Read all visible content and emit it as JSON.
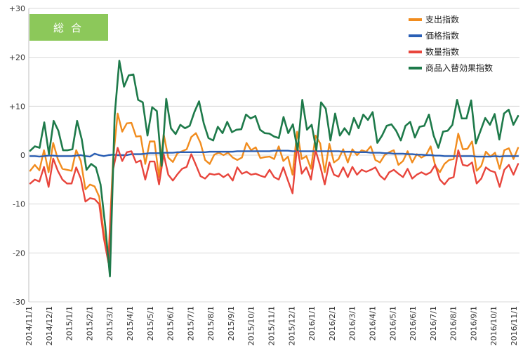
{
  "chart_data": {
    "type": "line",
    "badge": "総合",
    "colors": {
      "支出指数": "#f18c1e",
      "価格指数": "#2a5fb5",
      "数量指数": "#e8453c",
      "商品入替効果指数": "#1e7a4a",
      "badge_bg": "#8cc85a",
      "grid": "#d9d9d9"
    },
    "ylim": [
      -30,
      30
    ],
    "yticks": [
      {
        "v": 30,
        "label": "+30"
      },
      {
        "v": 20,
        "label": "+20"
      },
      {
        "v": 10,
        "label": "+10"
      },
      {
        "v": 0,
        "label": "0"
      },
      {
        "v": -10,
        "label": "-10"
      },
      {
        "v": -20,
        "label": "-20"
      },
      {
        "v": -30,
        "label": "-30"
      }
    ],
    "xticks": [
      "2014/11/1",
      "2014/12/1",
      "2015/1/1",
      "2015/2/1",
      "2015/3/1",
      "2015/4/1",
      "2015/5/1",
      "2015/6/1",
      "2015/7/1",
      "2015/8/1",
      "2015/9/1",
      "2015/10/1",
      "2015/11/1",
      "2015/12/1",
      "2016/1/1",
      "2016/2/1",
      "2016/3/1",
      "2016/4/1",
      "2016/5/1",
      "2016/6/1",
      "2016/7/1",
      "2016/8/1",
      "2016/9/1",
      "2016/10/1",
      "2016/11/1"
    ],
    "grid": true,
    "legend_position": "top-right",
    "series": [
      {
        "name": "支出指数",
        "values": [
          -3.2,
          -2,
          -3.1,
          1,
          -3.5,
          2.5,
          -0.8,
          -2.8,
          -3,
          -3.2,
          1,
          -1.2,
          -7,
          -6,
          -6.4,
          -8.5,
          -16,
          -21,
          -1,
          8.5,
          4.8,
          6.5,
          6.6,
          3.8,
          3.9,
          -1.8,
          2.8,
          2.8,
          -4.5,
          4.3,
          -0.5,
          -1.4,
          0.4,
          0.8,
          1.2,
          3.7,
          4.5,
          2.5,
          -1,
          -1.8,
          0.1,
          0.5,
          0,
          0.5,
          -0.5,
          -1,
          -0.5,
          2.5,
          1,
          1.6,
          -0.6,
          -0.4,
          -0.3,
          -0.8,
          1.8,
          -1.2,
          -0.3,
          -4,
          4.8,
          -0.8,
          -0.2,
          -2.8,
          4,
          2.4,
          -3.5,
          2.3,
          -1.5,
          -0.8,
          1.2,
          -1.5,
          1.2,
          0,
          1,
          0.7,
          1.8,
          -1,
          -1.5,
          0,
          0.6,
          1,
          -2,
          -1.2,
          0.8,
          -1.5,
          0.2,
          -0.5,
          0,
          1.8,
          -2.2,
          -3.5,
          -1.8,
          -1,
          -0.8,
          4.4,
          1.2,
          1.3,
          2.8,
          -3.2,
          -2.2,
          0.7,
          -0.3,
          0.5,
          -2.8,
          1,
          1.4,
          -0.8,
          1.5
        ]
      },
      {
        "name": "価格指数",
        "values": [
          -0.2,
          -0.2,
          -0.3,
          -0.2,
          -0.1,
          -0.1,
          -0.2,
          -0.2,
          -0.2,
          -0.2,
          -0.1,
          0,
          -0.2,
          -0.3,
          0.3,
          0,
          -0.2,
          0,
          0.1,
          0,
          0,
          0,
          0.2,
          0.2,
          0.2,
          0.3,
          0.4,
          0.4,
          0.4,
          0.5,
          0.5,
          0.5,
          0.6,
          0.6,
          0.6,
          0.6,
          0.6,
          0.6,
          0.6,
          0.7,
          0.7,
          0.7,
          0.7,
          0.7,
          0.7,
          0.8,
          0.8,
          0.8,
          0.8,
          0.8,
          0.8,
          0.8,
          0.8,
          0.9,
          0.9,
          0.9,
          0.9,
          0.8,
          0.8,
          0.8,
          0.8,
          0.8,
          0.8,
          0.8,
          0.8,
          0.8,
          0.8,
          0.8,
          0.7,
          0.7,
          0.7,
          0.6,
          0.6,
          0.6,
          0.5,
          0.5,
          0.5,
          0.4,
          0.4,
          0.3,
          0.3,
          0.3,
          0.2,
          0.2,
          0.1,
          0.1,
          0,
          0,
          -0.1,
          -0.1,
          -0.2,
          -0.2,
          -0.2,
          -0.2,
          -0.2,
          -0.2,
          -0.2,
          -0.3,
          -0.3,
          -0.3,
          -0.3,
          -0.2,
          -0.3,
          -0.2,
          -0.2,
          -0.2,
          -0.2
        ]
      },
      {
        "name": "数量指数",
        "values": [
          -5.8,
          -5,
          -5.4,
          -2.4,
          -6.5,
          -0.7,
          -3.2,
          -5,
          -5.8,
          -5.8,
          -2.5,
          -4.8,
          -9.5,
          -8.8,
          -9,
          -10,
          -17,
          -22,
          -3,
          1.5,
          -1.2,
          0.6,
          0.8,
          -1.5,
          -1.1,
          -5,
          -1.3,
          -1.3,
          -6,
          0.2,
          -4,
          -5.2,
          -3.9,
          -2.8,
          -2.4,
          0.2,
          -2,
          -4.3,
          -4.8,
          -3.8,
          -4,
          -3.8,
          -4.5,
          -3.9,
          -5.2,
          -2.5,
          -3.8,
          -3.4,
          -4,
          -3.8,
          -4.2,
          -4.5,
          -3,
          -4.5,
          -5,
          -2.5,
          -5.2,
          -7.8,
          2,
          -3.8,
          -2.5,
          -5,
          1,
          -2.2,
          -6,
          -1.5,
          -4,
          -4.4,
          -2.5,
          -4.5,
          -2.4,
          -4,
          -3,
          -3.4,
          -3,
          -2.5,
          -4.2,
          -5,
          -3.5,
          -3,
          -3.8,
          -4.5,
          -2.8,
          -4.8,
          -4,
          -3.5,
          -4,
          -3.5,
          -2,
          -5,
          -6,
          -4.8,
          -4.5,
          1,
          -2,
          -2.2,
          -1.5,
          -5.8,
          -4.8,
          -2.5,
          -3.2,
          -3.5,
          -6.5,
          -3,
          -2,
          -4,
          -1.8
        ]
      },
      {
        "name": "商品入替効果指数",
        "values": [
          0.9,
          1.8,
          1.5,
          6.7,
          0.2,
          7,
          5,
          1,
          1,
          1.2,
          7,
          3.2,
          -3,
          -1.8,
          -2.5,
          -6,
          -14.5,
          -24.8,
          8,
          19.3,
          14,
          16.3,
          16.5,
          11.3,
          10.8,
          4,
          9.8,
          9,
          -2.2,
          11.5,
          5.5,
          4.3,
          6.2,
          5.5,
          6,
          8.8,
          11,
          6.5,
          3.5,
          3,
          5.8,
          4.5,
          6.8,
          4.7,
          5.2,
          5.3,
          8.3,
          7.5,
          8,
          5.2,
          4.5,
          4.4,
          3.8,
          3.5,
          7.8,
          4.5,
          6.3,
          1,
          11.3,
          5.2,
          6.2,
          1,
          10.8,
          9.5,
          3,
          8.5,
          4,
          5.5,
          4.2,
          7.6,
          5.5,
          8.3,
          7.2,
          8.8,
          2.5,
          4,
          6,
          6.3,
          5,
          3,
          6,
          6.8,
          3.6,
          5.8,
          6,
          8.3,
          4,
          1.5,
          4.8,
          5,
          6.2,
          11.3,
          7.5,
          7.5,
          11.2,
          2.4,
          5,
          7.6,
          6.2,
          8.4,
          3.2,
          8.5,
          9.3,
          6.2,
          8
        ]
      }
    ]
  }
}
